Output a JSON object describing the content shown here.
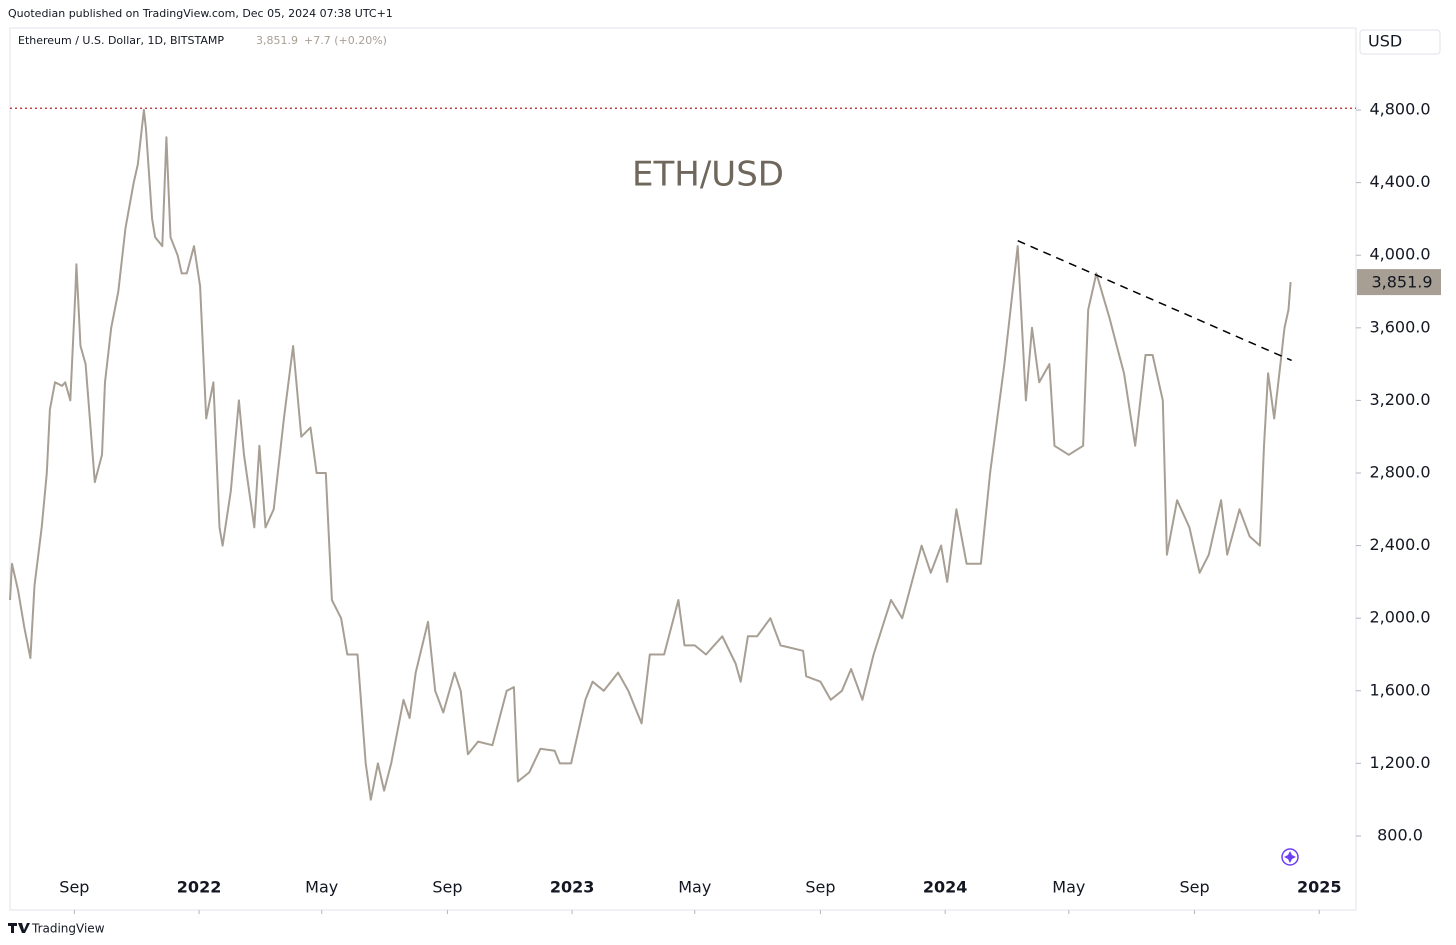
{
  "header": {
    "published": "Quotedian published on TradingView.com, Dec 05, 2024 07:38 UTC+1",
    "symbol": "Ethereum / U.S. Dollar, 1D, BITSTAMP",
    "price": "3,851.9",
    "change": "+7.7 (+0.20%)",
    "currency": "USD",
    "footer": "TradingView"
  },
  "chart_data": {
    "type": "line",
    "title": "ETH/USD",
    "color": "#a89f94",
    "x": [
      "2021-06-30",
      "2021-07-02",
      "2021-07-08",
      "2021-07-14",
      "2021-07-20",
      "2021-07-24",
      "2021-07-31",
      "2021-08-05",
      "2021-08-08",
      "2021-08-13",
      "2021-08-20",
      "2021-08-23",
      "2021-08-28",
      "2021-09-02",
      "2021-09-03",
      "2021-09-07",
      "2021-09-12",
      "2021-09-21",
      "2021-09-28",
      "2021-10-01",
      "2021-10-07",
      "2021-10-14",
      "2021-10-21",
      "2021-10-29",
      "2021-11-02",
      "2021-11-08",
      "2021-11-10",
      "2021-11-16",
      "2021-11-19",
      "2021-11-26",
      "2021-11-30",
      "2021-12-04",
      "2021-12-11",
      "2021-12-15",
      "2021-12-20",
      "2021-12-27",
      "2022-01-02",
      "2022-01-08",
      "2022-01-15",
      "2022-01-21",
      "2022-01-24",
      "2022-02-01",
      "2022-02-09",
      "2022-02-14",
      "2022-02-24",
      "2022-03-01",
      "2022-03-07",
      "2022-03-15",
      "2022-03-25",
      "2022-04-03",
      "2022-04-11",
      "2022-04-20",
      "2022-04-26",
      "2022-05-05",
      "2022-05-11",
      "2022-05-20",
      "2022-05-26",
      "2022-06-05",
      "2022-06-13",
      "2022-06-18",
      "2022-06-25",
      "2022-07-01",
      "2022-07-08",
      "2022-07-20",
      "2022-07-26",
      "2022-08-01",
      "2022-08-13",
      "2022-08-20",
      "2022-08-28",
      "2022-09-08",
      "2022-09-14",
      "2022-09-21",
      "2022-10-01",
      "2022-10-15",
      "2022-10-29",
      "2022-11-05",
      "2022-11-09",
      "2022-11-20",
      "2022-12-01",
      "2022-12-15",
      "2022-12-20",
      "2022-12-31",
      "2023-01-14",
      "2023-01-21",
      "2023-02-01",
      "2023-02-15",
      "2023-02-25",
      "2023-03-10",
      "2023-03-18",
      "2023-04-01",
      "2023-04-15",
      "2023-04-21",
      "2023-05-01",
      "2023-05-12",
      "2023-05-28",
      "2023-06-10",
      "2023-06-15",
      "2023-06-22",
      "2023-07-01",
      "2023-07-14",
      "2023-07-24",
      "2023-08-15",
      "2023-08-18",
      "2023-09-01",
      "2023-09-11",
      "2023-09-22",
      "2023-10-01",
      "2023-10-12",
      "2023-10-23",
      "2023-11-09",
      "2023-11-20",
      "2023-12-09",
      "2023-12-18",
      "2023-12-28",
      "2024-01-03",
      "2024-01-12",
      "2024-01-22",
      "2024-02-05",
      "2024-02-14",
      "2024-02-28",
      "2024-03-12",
      "2024-03-20",
      "2024-03-26",
      "2024-04-02",
      "2024-04-12",
      "2024-04-17",
      "2024-05-01",
      "2024-05-15",
      "2024-05-20",
      "2024-05-28",
      "2024-06-10",
      "2024-06-17",
      "2024-06-24",
      "2024-07-05",
      "2024-07-15",
      "2024-07-22",
      "2024-08-01",
      "2024-08-05",
      "2024-08-15",
      "2024-08-27",
      "2024-09-06",
      "2024-09-15",
      "2024-09-27",
      "2024-10-03",
      "2024-10-15",
      "2024-10-25",
      "2024-11-04",
      "2024-11-08",
      "2024-11-12",
      "2024-11-18",
      "2024-11-24",
      "2024-11-28",
      "2024-12-02",
      "2024-12-04"
    ],
    "values": [
      2100,
      2300,
      2150,
      1950,
      1780,
      2180,
      2500,
      2800,
      3150,
      3300,
      3280,
      3300,
      3200,
      3800,
      3950,
      3500,
      3400,
      2750,
      2900,
      3300,
      3600,
      3800,
      4150,
      4400,
      4500,
      4800,
      4700,
      4200,
      4100,
      4050,
      4650,
      4100,
      4000,
      3900,
      3900,
      4050,
      3830,
      3100,
      3300,
      2500,
      2400,
      2700,
      3200,
      2900,
      2500,
      2950,
      2500,
      2600,
      3100,
      3500,
      3000,
      3050,
      2800,
      2800,
      2100,
      2000,
      1800,
      1800,
      1200,
      1000,
      1200,
      1050,
      1200,
      1550,
      1450,
      1700,
      1980,
      1600,
      1480,
      1700,
      1600,
      1250,
      1320,
      1300,
      1600,
      1620,
      1100,
      1150,
      1280,
      1270,
      1200,
      1200,
      1550,
      1650,
      1600,
      1700,
      1600,
      1420,
      1800,
      1800,
      2100,
      1850,
      1850,
      1800,
      1900,
      1750,
      1650,
      1900,
      1900,
      2000,
      1850,
      1820,
      1680,
      1650,
      1550,
      1600,
      1720,
      1550,
      1800,
      2100,
      2000,
      2400,
      2250,
      2400,
      2200,
      2600,
      2300,
      2300,
      2800,
      3400,
      4050,
      3200,
      3600,
      3300,
      3400,
      2950,
      2900,
      2950,
      3700,
      3900,
      3650,
      3500,
      3350,
      2950,
      3450,
      3450,
      3200,
      2350,
      2650,
      2500,
      2250,
      2350,
      2650,
      2350,
      2600,
      2450,
      2400,
      2950,
      3350,
      3100,
      3400,
      3600,
      3700,
      3851.9
    ],
    "last_value_label": "3,851.9",
    "xlim": [
      "2021-06-30",
      "2025-02-06"
    ],
    "xticks": [
      {
        "value": "2021-09-01",
        "label": "Sep"
      },
      {
        "value": "2022-01-01",
        "label": "2022"
      },
      {
        "value": "2022-05-01",
        "label": "May"
      },
      {
        "value": "2022-09-01",
        "label": "Sep"
      },
      {
        "value": "2023-01-01",
        "label": "2023"
      },
      {
        "value": "2023-05-01",
        "label": "May"
      },
      {
        "value": "2023-09-01",
        "label": "Sep"
      },
      {
        "value": "2024-01-01",
        "label": "2024"
      },
      {
        "value": "2024-05-01",
        "label": "May"
      },
      {
        "value": "2024-09-01",
        "label": "Sep"
      },
      {
        "value": "2025-01-01",
        "label": "2025"
      }
    ],
    "ylim": [
      392,
      5252
    ],
    "yticks": [
      {
        "value": 800,
        "label": "800.0"
      },
      {
        "value": 1200,
        "label": "1,200.0"
      },
      {
        "value": 1600,
        "label": "1,600.0"
      },
      {
        "value": 2000,
        "label": "2,000.0"
      },
      {
        "value": 2400,
        "label": "2,400.0"
      },
      {
        "value": 2800,
        "label": "2,800.0"
      },
      {
        "value": 3200,
        "label": "3,200.0"
      },
      {
        "value": 3600,
        "label": "3,600.0"
      },
      {
        "value": 4000,
        "label": "4,000.0"
      },
      {
        "value": 4400,
        "label": "4,400.0"
      },
      {
        "value": 4800,
        "label": "4,800.0"
      }
    ],
    "reference_line": {
      "value": 4810,
      "color": "#b22222"
    },
    "trendline": {
      "x": [
        "2024-03-12",
        "2024-12-05"
      ],
      "y": [
        4080,
        3420
      ]
    },
    "grid": false
  }
}
